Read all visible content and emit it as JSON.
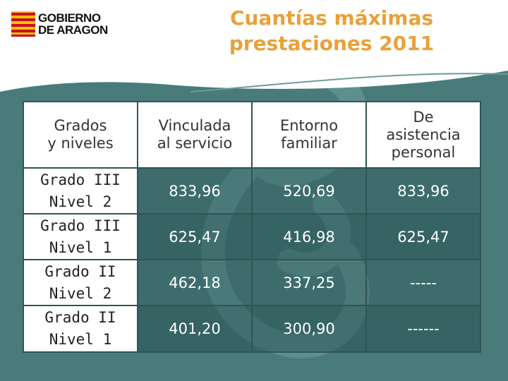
{
  "logo": {
    "line1": "GOBIERNO",
    "line2": "DE ARAGON",
    "icon": "aragon-coat-of-arms-icon"
  },
  "title": {
    "line1": "Cuantías máximas",
    "line2": "prestaciones 2011"
  },
  "colors": {
    "title": "#e8a13a",
    "background": "#4a7b7b",
    "header_band": "#ffffff",
    "logo_stripe_red": "#c8102e",
    "logo_stripe_yellow": "#f4c400"
  },
  "table": {
    "headers": [
      [
        "Grados",
        "y niveles"
      ],
      [
        "Vinculada",
        "al servicio"
      ],
      [
        "Entorno",
        "familiar"
      ],
      [
        "De",
        "asistencia",
        "personal"
      ]
    ],
    "rows": [
      {
        "label": [
          "Grado III",
          "Nivel 2"
        ],
        "values": [
          "833,96",
          "520,69",
          "833,96"
        ]
      },
      {
        "label": [
          "Grado III",
          "Nivel 1"
        ],
        "values": [
          "625,47",
          "416,98",
          "625,47"
        ]
      },
      {
        "label": [
          "Grado II",
          "Nivel 2"
        ],
        "values": [
          "462,18",
          "337,25",
          "-----"
        ]
      },
      {
        "label": [
          "Grado II",
          "Nivel 1"
        ],
        "values": [
          "401,20",
          "300,90",
          "------"
        ]
      }
    ]
  }
}
